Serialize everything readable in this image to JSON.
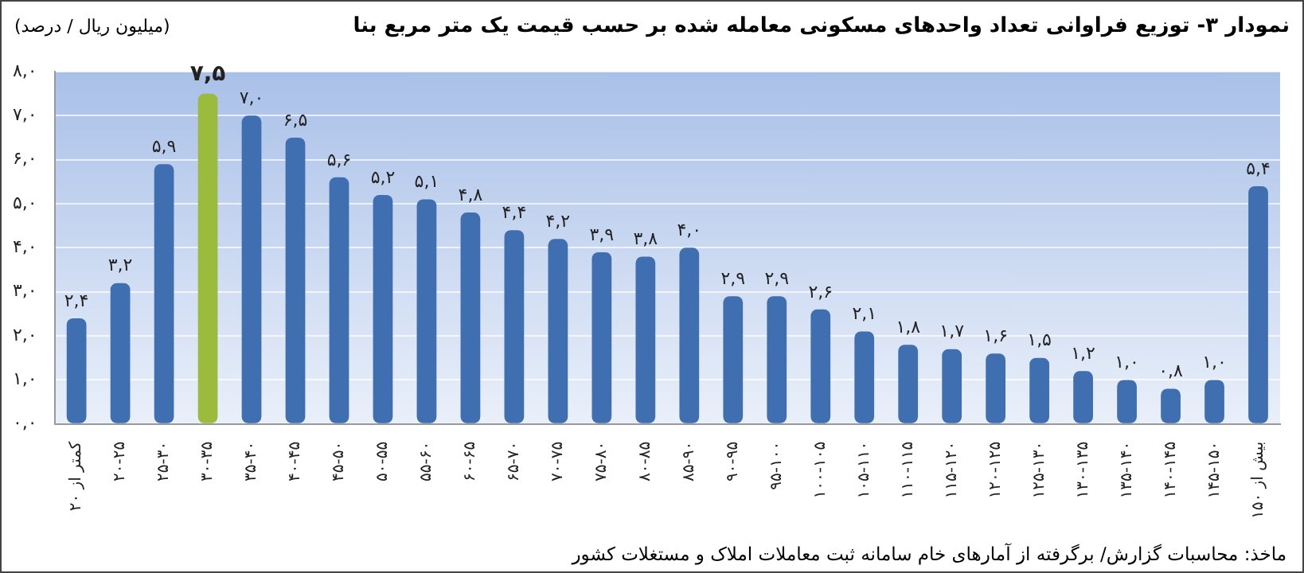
{
  "chart_data": {
    "type": "bar",
    "title": "نمودار ۳- توزیع فراوانی تعداد واحدهای مسکونی معامله شده بر حسب قیمت یک متر مربع بنا",
    "ylabel": "(میلیون ریال / درصد)",
    "categories": [
      "کمتر از ۲۰",
      "۲۰-۲۵",
      "۲۵-۳۰",
      "۳۰-۳۵",
      "۳۵-۴۰",
      "۴۰-۴۵",
      "۴۵-۵۰",
      "۵۰-۵۵",
      "۵۵-۶۰",
      "۶۰-۶۵",
      "۶۵-۷۰",
      "۷۰-۷۵",
      "۷۵-۸۰",
      "۸۰-۸۵",
      "۸۵-۹۰",
      "۹۰-۹۵",
      "۹۵-۱۰۰",
      "۱۰۰-۱۰۵",
      "۱۰۵-۱۱۰",
      "۱۱۰-۱۱۵",
      "۱۱۵-۱۲۰",
      "۱۲۰-۱۲۵",
      "۱۲۵-۱۳۰",
      "۱۳۰-۱۳۵",
      "۱۳۵-۱۴۰",
      "۱۴۰-۱۴۵",
      "۱۴۵-۱۵۰",
      "بیش از ۱۵۰"
    ],
    "values": [
      2.4,
      3.2,
      5.9,
      7.5,
      7.0,
      6.5,
      5.6,
      5.2,
      5.1,
      4.8,
      4.4,
      4.2,
      3.9,
      3.8,
      4.0,
      2.9,
      2.9,
      2.6,
      2.1,
      1.8,
      1.7,
      1.6,
      1.5,
      1.2,
      1.0,
      0.8,
      1.0,
      5.4
    ],
    "value_labels": [
      "۲,۴",
      "۳,۲",
      "۵,۹",
      "۷,۵",
      "۷,۰",
      "۶,۵",
      "۵,۶",
      "۵,۲",
      "۵,۱",
      "۴,۸",
      "۴,۴",
      "۴,۲",
      "۳,۹",
      "۳,۸",
      "۴,۰",
      "۲,۹",
      "۲,۹",
      "۲,۶",
      "۲,۱",
      "۱,۸",
      "۱,۷",
      "۱,۶",
      "۱,۵",
      "۱,۲",
      "۱,۰",
      "۰,۸",
      "۱,۰",
      "۵,۴"
    ],
    "colors": [
      "#3f6fb0",
      "#3f6fb0",
      "#3f6fb0",
      "#9bbb3c",
      "#3f6fb0",
      "#3f6fb0",
      "#3f6fb0",
      "#3f6fb0",
      "#3f6fb0",
      "#3f6fb0",
      "#3f6fb0",
      "#3f6fb0",
      "#3f6fb0",
      "#3f6fb0",
      "#3f6fb0",
      "#3f6fb0",
      "#3f6fb0",
      "#3f6fb0",
      "#3f6fb0",
      "#3f6fb0",
      "#3f6fb0",
      "#3f6fb0",
      "#3f6fb0",
      "#3f6fb0",
      "#3f6fb0",
      "#3f6fb0",
      "#3f6fb0",
      "#3f6fb0"
    ],
    "ylim": [
      0,
      8
    ],
    "yticks": [
      {
        "value": 0,
        "label": "۰,۰"
      },
      {
        "value": 1,
        "label": "۱,۰"
      },
      {
        "value": 2,
        "label": "۲,۰"
      },
      {
        "value": 3,
        "label": "۳,۰"
      },
      {
        "value": 4,
        "label": "۴,۰"
      },
      {
        "value": 5,
        "label": "۵,۰"
      },
      {
        "value": 6,
        "label": "۶,۰"
      },
      {
        "value": 7,
        "label": "۷,۰"
      },
      {
        "value": 8,
        "label": "۸,۰"
      }
    ],
    "grid": "y",
    "legend": false,
    "annotations": [
      "ماخذ: محاسبات گزارش/ برگرفته از آمارهای خام سامانه ثبت معاملات املاک و مستغلات کشور"
    ]
  }
}
